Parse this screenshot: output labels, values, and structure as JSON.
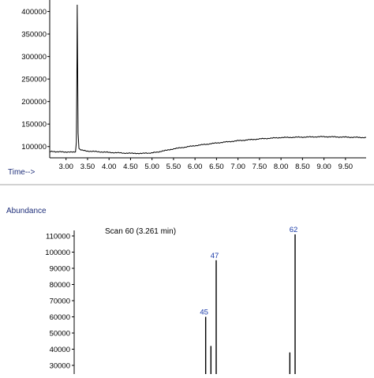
{
  "labels": {
    "time_axis": "Time-->",
    "abundance": "Abundance",
    "scan": "Scan 60 (3.261 min)"
  },
  "colors": {
    "text": "#000000",
    "annotation": "#1f2f7a",
    "blue_label": "#1a3aa8",
    "line": "#000000"
  },
  "chart_data": [
    {
      "type": "line",
      "name": "chromatogram",
      "xlim": [
        2.62,
        9.98
      ],
      "ylim": [
        75000,
        415000
      ],
      "x_ticks": [
        "3.00",
        "3.50",
        "4.00",
        "4.50",
        "5.00",
        "5.50",
        "6.00",
        "6.50",
        "7.00",
        "7.50",
        "8.00",
        "8.50",
        "9.00",
        "9.50"
      ],
      "y_ticks": [
        "100000",
        "150000",
        "200000",
        "250000",
        "300000",
        "350000",
        "400000"
      ],
      "xlabel": "Time-->",
      "x": [
        2.62,
        2.8,
        3.0,
        3.15,
        3.22,
        3.24,
        3.255,
        3.26,
        3.265,
        3.28,
        3.3,
        3.35,
        3.5,
        4.0,
        4.5,
        4.8,
        5.0,
        5.2,
        5.5,
        6.0,
        6.5,
        7.0,
        7.5,
        8.0,
        8.5,
        9.0,
        9.5,
        9.98
      ],
      "y": [
        89000,
        88500,
        88000,
        87500,
        88000,
        110000,
        300000,
        415000,
        350000,
        130000,
        96000,
        92000,
        90000,
        87000,
        85000,
        85000,
        86000,
        89000,
        95000,
        102000,
        108000,
        113000,
        117000,
        120000,
        121000,
        122000,
        121000,
        120000
      ]
    },
    {
      "type": "bar",
      "name": "mass spectrum",
      "ylabel": "Abundance",
      "annotation": "Scan 60 (3.261 min)",
      "ylim": [
        25000,
        112000
      ],
      "y_ticks": [
        "30000",
        "40000",
        "50000",
        "60000",
        "70000",
        "80000",
        "90000",
        "100000",
        "110000"
      ],
      "peaks": [
        {
          "mz": 45,
          "value": 60000,
          "label": "45"
        },
        {
          "mz": 46,
          "value": 42000,
          "label": ""
        },
        {
          "mz": 47,
          "value": 95000,
          "label": "47"
        },
        {
          "mz": 61,
          "value": 38000,
          "label": ""
        },
        {
          "mz": 62,
          "value": 111000,
          "label": "62"
        }
      ]
    }
  ]
}
